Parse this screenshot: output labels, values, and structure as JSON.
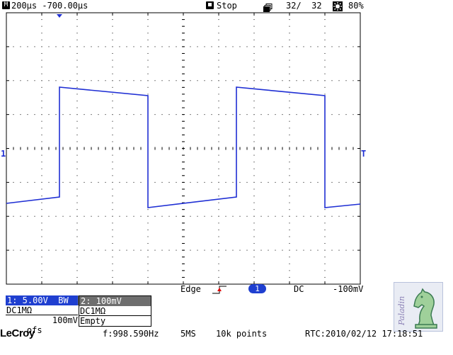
{
  "top_bar": {
    "timebase_icon": "M",
    "timebase": "200µs -700.00µs",
    "run_state_icon": "stop-square-icon",
    "run_state": "Stop",
    "acquisition_icon": "stack-icon",
    "acquisition_count": "32/  32",
    "brightness_icon": "sun-icon",
    "brightness": "80%"
  },
  "scope": {
    "channel1_marker": "1",
    "trigger_marker": "T",
    "trace_color": "#1f2fd4",
    "grid_color": "#000000"
  },
  "trigger_bar": {
    "type": "Edge",
    "source": "1",
    "coupling": "DC",
    "level": "-100mV",
    "source_badge_color": "#1f3fd0"
  },
  "channel1": {
    "header": "1: 5.00V  BW",
    "coupling": "DC1MΩ",
    "offset_label": "ofs",
    "offset_value": "100mV",
    "header_color": "#1f3fd0"
  },
  "channel2": {
    "header": "2: 100mV",
    "coupling": "DC1MΩ",
    "status": "Empty",
    "header_color": "#6e6e6e"
  },
  "bottom_bar": {
    "brand": "LeCroy",
    "frequency": "f:998.590Hz",
    "sample_rate": "5MS",
    "record_length": "10k points",
    "rtc": "RTC:2010/02/12 17:18:51"
  },
  "watermark": {
    "text": "Paladin",
    "icon": "chess-knight-icon"
  }
}
